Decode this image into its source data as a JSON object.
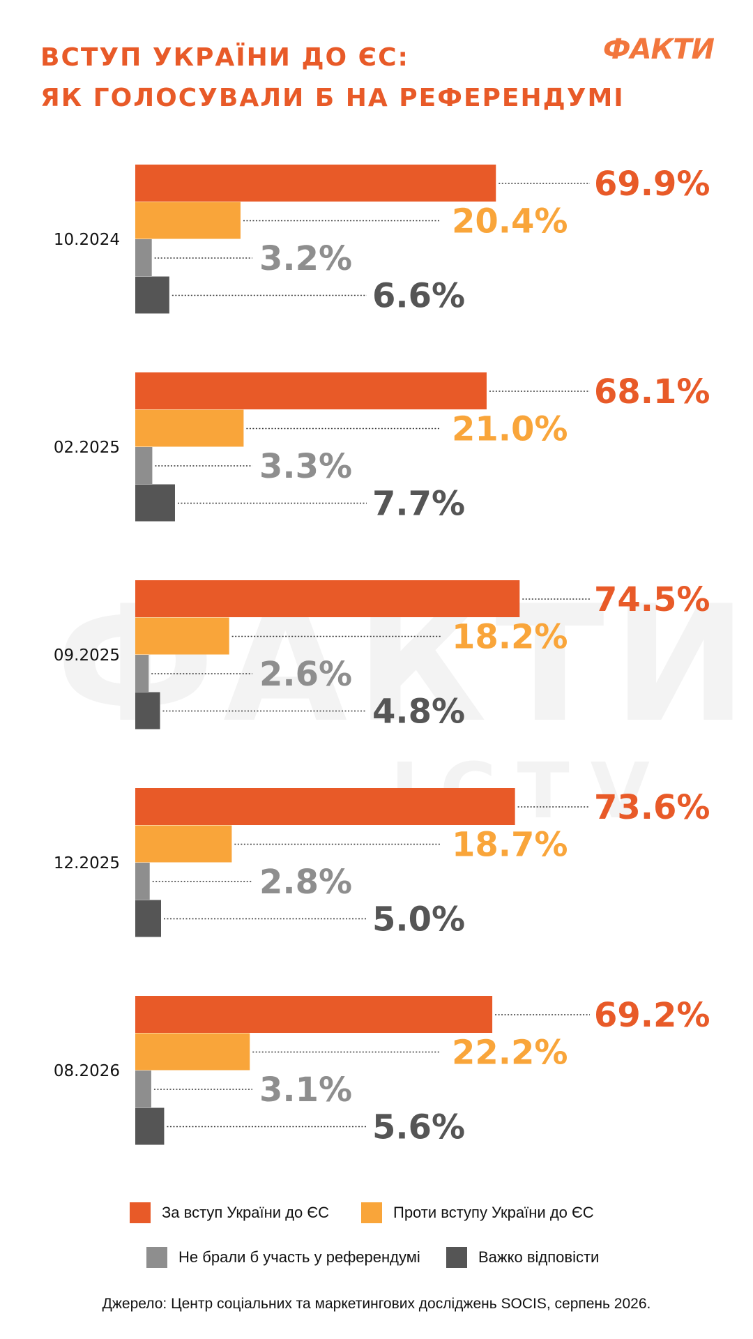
{
  "title_line1": "ВСТУП УКРАЇНИ ДО ЄС:",
  "title_line2": "ЯК ГОЛОСУВАЛИ Б НА РЕФЕРЕНДУМІ",
  "logo": "ФАКТИ",
  "watermark": "ФАКТИ",
  "watermark2": "ІСТV",
  "source": "Джерело: Центр соціальних та маркетингових досліджень SOCIS, серпень 2026.",
  "colors": {
    "for": "#e85a28",
    "against": "#f9a53a",
    "abstain": "#8e8e8e",
    "hard": "#555555"
  },
  "chart_data": {
    "type": "bar",
    "orientation": "horizontal",
    "categories": [
      "10.2024",
      "02.2025",
      "09.2025",
      "12.2025",
      "08.2026"
    ],
    "series": [
      {
        "name": "За вступ України до ЄС",
        "color": "#e85a28",
        "values": [
          69.9,
          68.1,
          74.5,
          73.6,
          69.2
        ],
        "labels": [
          "69.9%",
          "68.1%",
          "74.5%",
          "73.6%",
          "69.2%"
        ]
      },
      {
        "name": "Проти вступу України до ЄС",
        "color": "#f9a53a",
        "values": [
          20.4,
          21.0,
          18.2,
          18.7,
          22.2
        ],
        "labels": [
          "20.4%",
          "21.0%",
          "18.2%",
          "18.7%",
          "22.2%"
        ]
      },
      {
        "name": "Не брали б участь у референдумі",
        "color": "#8e8e8e",
        "values": [
          3.2,
          3.3,
          2.6,
          2.8,
          3.1
        ],
        "labels": [
          "3.2%",
          "3.3%",
          "2.6%",
          "2.8%",
          "3.1%"
        ]
      },
      {
        "name": "Важко відповісти",
        "color": "#555555",
        "values": [
          6.6,
          7.7,
          4.8,
          5.0,
          5.6
        ],
        "labels": [
          "6.6%",
          "7.7%",
          "4.8%",
          "5.0%",
          "5.6%"
        ]
      }
    ],
    "legend_position": "bottom",
    "grid": false
  }
}
